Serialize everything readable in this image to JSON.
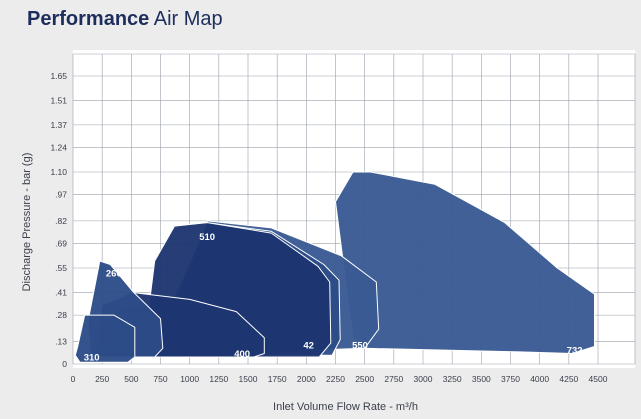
{
  "title": {
    "bold": "Performance",
    "rest": "Air Map"
  },
  "chart_data": {
    "type": "area",
    "xlabel": "Inlet Volume Flow Rate - m³/h",
    "ylabel": "Discharge Pressure - bar (g)",
    "xlim": [
      0,
      4500
    ],
    "ylim": [
      0,
      1.65
    ],
    "x_ticks": [
      0,
      250,
      500,
      750,
      1000,
      1250,
      1500,
      1750,
      2000,
      2250,
      2500,
      2750,
      3000,
      3250,
      3500,
      3750,
      4000,
      4250,
      4500
    ],
    "y_ticks": [
      0,
      0.13,
      0.28,
      0.41,
      0.55,
      0.69,
      0.82,
      0.97,
      1.1,
      1.24,
      1.37,
      1.51,
      1.65
    ],
    "grid": true,
    "colors": {
      "dark": "#1d3570",
      "mid": "#2d4c87",
      "light": "#395a93",
      "outline": "#ffffff",
      "background": "#ececed",
      "title": "#1d2d5c"
    },
    "series": [
      {
        "name": "732",
        "polygon": [
          [
            2250,
            0.93
          ],
          [
            2400,
            1.1
          ],
          [
            2550,
            1.1
          ],
          [
            3100,
            1.03
          ],
          [
            3700,
            0.81
          ],
          [
            4150,
            0.55
          ],
          [
            4470,
            0.4
          ],
          [
            4470,
            0.1
          ],
          [
            4280,
            0.06
          ],
          [
            3800,
            0.07
          ],
          [
            2500,
            0.09
          ],
          [
            2400,
            0.15
          ]
        ]
      },
      {
        "name": "550",
        "polygon": [
          [
            1150,
            0.82
          ],
          [
            1700,
            0.78
          ],
          [
            2300,
            0.62
          ],
          [
            2600,
            0.47
          ],
          [
            2620,
            0.2
          ],
          [
            2500,
            0.09
          ],
          [
            1200,
            0.06
          ],
          [
            1000,
            0.07
          ],
          [
            800,
            0.2
          ]
        ]
      },
      {
        "name": "42",
        "polygon": [
          [
            1150,
            0.81
          ],
          [
            1700,
            0.76
          ],
          [
            2150,
            0.57
          ],
          [
            2280,
            0.48
          ],
          [
            2290,
            0.14
          ],
          [
            2220,
            0.05
          ],
          [
            900,
            0.05
          ],
          [
            750,
            0.2
          ]
        ]
      },
      {
        "name": "510",
        "polygon": [
          [
            700,
            0.59
          ],
          [
            870,
            0.79
          ],
          [
            1150,
            0.81
          ],
          [
            1700,
            0.75
          ],
          [
            2100,
            0.56
          ],
          [
            2200,
            0.47
          ],
          [
            2210,
            0.12
          ],
          [
            2110,
            0.04
          ],
          [
            300,
            0.04
          ],
          [
            230,
            0.27
          ],
          [
            450,
            0.32
          ],
          [
            650,
            0.32
          ]
        ]
      },
      {
        "name": "400",
        "polygon": [
          [
            400,
            0.38
          ],
          [
            500,
            0.41
          ],
          [
            1000,
            0.37
          ],
          [
            1400,
            0.3
          ],
          [
            1640,
            0.15
          ],
          [
            1640,
            0.06
          ],
          [
            1550,
            0.04
          ],
          [
            200,
            0.04
          ],
          [
            250,
            0.34
          ]
        ]
      },
      {
        "name": "260",
        "polygon": [
          [
            130,
            0.25
          ],
          [
            230,
            0.59
          ],
          [
            320,
            0.57
          ],
          [
            520,
            0.41
          ],
          [
            750,
            0.26
          ],
          [
            770,
            0.09
          ],
          [
            700,
            0.04
          ],
          [
            150,
            0.04
          ]
        ]
      },
      {
        "name": "310",
        "polygon": [
          [
            40,
            0.1
          ],
          [
            100,
            0.28
          ],
          [
            350,
            0.28
          ],
          [
            530,
            0.21
          ],
          [
            530,
            0.04
          ],
          [
            470,
            0.01
          ],
          [
            60,
            0.01
          ],
          [
            20,
            0.05
          ]
        ]
      }
    ]
  }
}
